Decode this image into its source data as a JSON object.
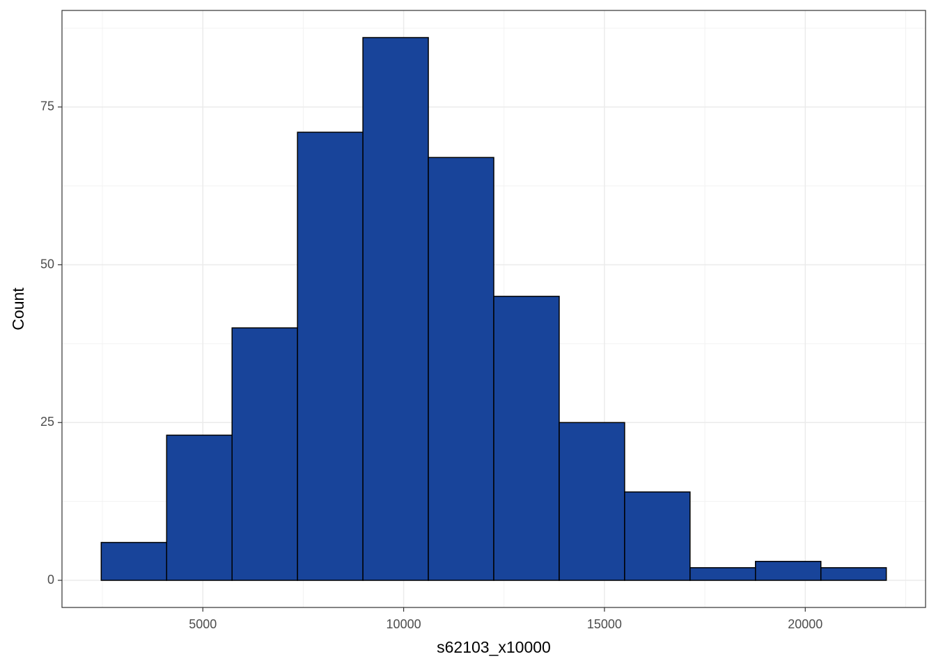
{
  "chart_data": {
    "type": "histogram",
    "x_label": "s62103_x10000",
    "y_label": "Count",
    "bins": [
      2470,
      4099,
      5728,
      7357,
      8986,
      10615,
      12244,
      13873,
      15502,
      17131,
      18760,
      20389,
      22018
    ],
    "values": [
      6,
      23,
      40,
      71,
      86,
      67,
      45,
      25,
      14,
      2,
      3,
      2
    ],
    "color": "#18449a",
    "edge_color": "#000000",
    "xlim": [
      1493,
      22995
    ],
    "xticks": [
      5000,
      10000,
      15000,
      20000
    ],
    "ylim": [
      -4.3,
      90.3
    ],
    "yticks": [
      0,
      25,
      50,
      75
    ],
    "grid": true,
    "minor_grid": true
  }
}
